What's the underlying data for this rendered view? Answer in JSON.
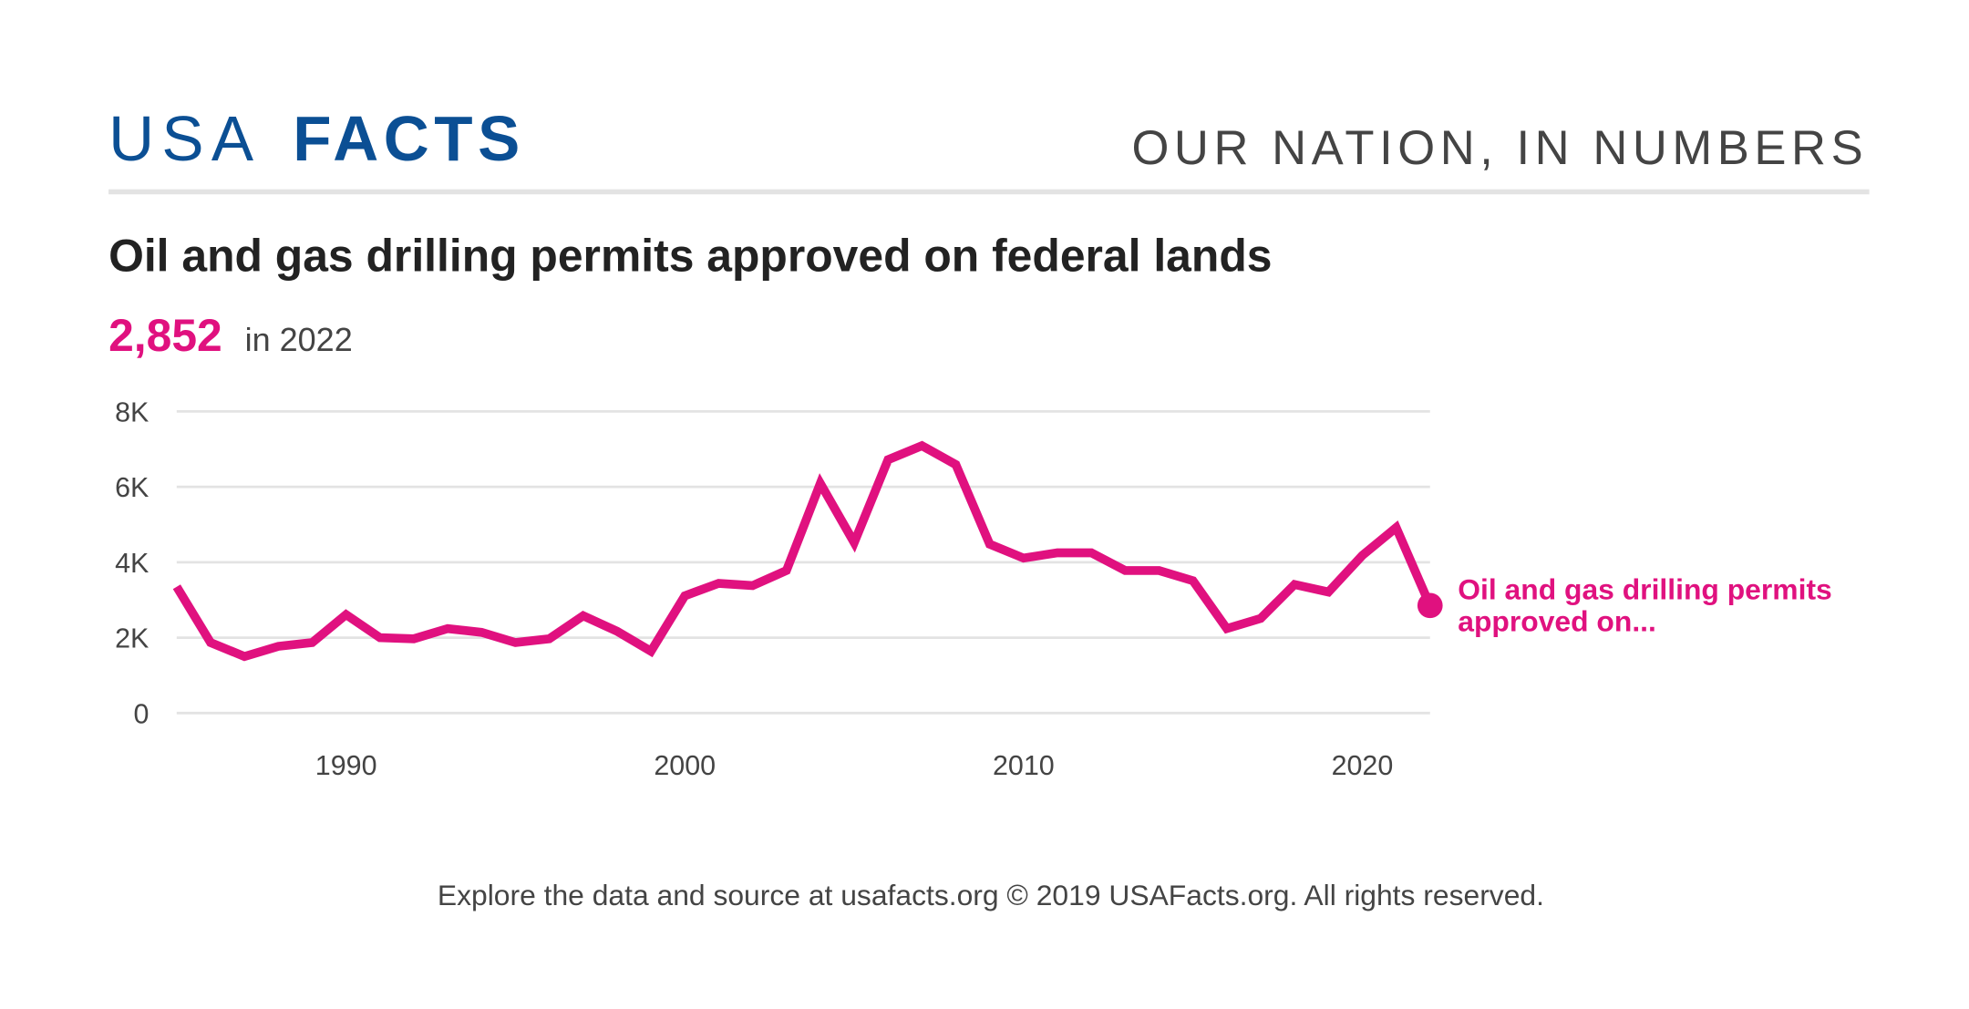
{
  "header": {
    "logo": [
      "USA",
      "FACTS"
    ],
    "tagline": "OUR NATION, IN NUMBERS"
  },
  "chart_data": {
    "type": "line",
    "title": "Oil and gas drilling permits approved on federal lands",
    "highlight": {
      "value": "2,852",
      "text": "in 2022"
    },
    "x": [
      1985,
      1986,
      1987,
      1988,
      1989,
      1990,
      1991,
      1992,
      1993,
      1994,
      1995,
      1996,
      1997,
      1998,
      1999,
      2000,
      2001,
      2002,
      2003,
      2004,
      2005,
      2006,
      2007,
      2008,
      2009,
      2010,
      2011,
      2012,
      2013,
      2014,
      2015,
      2016,
      2017,
      2018,
      2019,
      2020,
      2021,
      2022
    ],
    "series": [
      {
        "name": "Oil and gas drilling permits approved on...",
        "color": "#e0117f",
        "values": [
          3350,
          1870,
          1500,
          1770,
          1870,
          2610,
          2000,
          1970,
          2240,
          2140,
          1870,
          1970,
          2580,
          2170,
          1640,
          3110,
          3440,
          3380,
          3780,
          6090,
          4520,
          6720,
          7090,
          6590,
          4480,
          4110,
          4250,
          4250,
          3780,
          3780,
          3510,
          2240,
          2510,
          3410,
          3210,
          4180,
          4920,
          2852
        ]
      }
    ],
    "xlim": [
      1985,
      2022
    ],
    "xticks": [
      1990,
      2000,
      2010,
      2020
    ],
    "ylim": [
      0,
      8000
    ],
    "yticks": [
      0,
      {
        "value": 2000,
        "label": "2K"
      },
      {
        "value": 4000,
        "label": "4K"
      },
      {
        "value": 6000,
        "label": "6K"
      },
      {
        "value": 8000,
        "label": "8K"
      }
    ],
    "grid": true
  },
  "footer": "Explore the data and source at usafacts.org © 2019 USAFacts.org. All rights reserved."
}
